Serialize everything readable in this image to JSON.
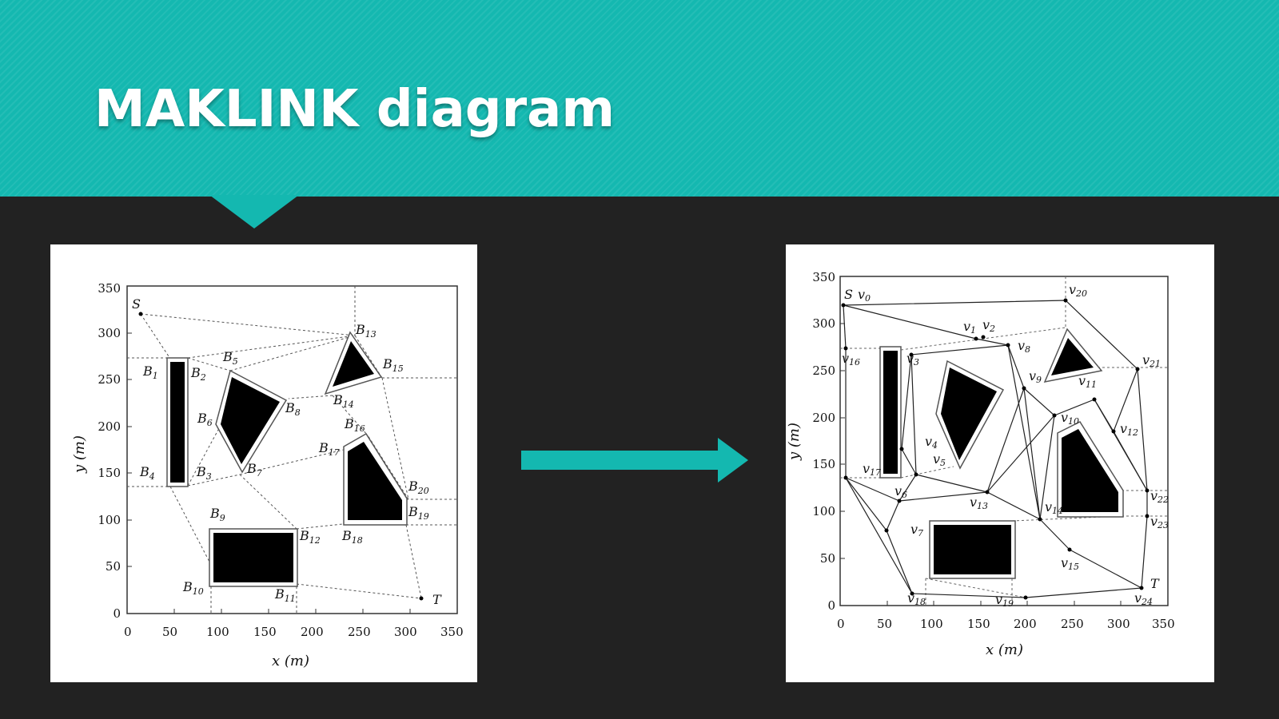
{
  "slide": {
    "title": "MAKLINK diagram",
    "accent_color": "#14b8b0",
    "background_color": "#222222",
    "arrow_color": "#14b8b0"
  },
  "left_diagram": {
    "x_axis_label": "x (m)",
    "y_axis_label": "y (m)",
    "x_ticks": [
      "0",
      "50",
      "100",
      "150",
      "200",
      "250",
      "300",
      "350"
    ],
    "y_ticks": [
      "0",
      "50",
      "100",
      "150",
      "200",
      "250",
      "300",
      "350"
    ],
    "start_label": "S",
    "target_label": "T",
    "obstacle_vertices": [
      {
        "base": "B",
        "sub": "1"
      },
      {
        "base": "B",
        "sub": "2"
      },
      {
        "base": "B",
        "sub": "3"
      },
      {
        "base": "B",
        "sub": "4"
      },
      {
        "base": "B",
        "sub": "5"
      },
      {
        "base": "B",
        "sub": "6"
      },
      {
        "base": "B",
        "sub": "7"
      },
      {
        "base": "B",
        "sub": "8"
      },
      {
        "base": "B",
        "sub": "9"
      },
      {
        "base": "B",
        "sub": "10"
      },
      {
        "base": "B",
        "sub": "11"
      },
      {
        "base": "B",
        "sub": "12"
      },
      {
        "base": "B",
        "sub": "13"
      },
      {
        "base": "B",
        "sub": "14"
      },
      {
        "base": "B",
        "sub": "15"
      },
      {
        "base": "B",
        "sub": "16"
      },
      {
        "base": "B",
        "sub": "17"
      },
      {
        "base": "B",
        "sub": "18"
      },
      {
        "base": "B",
        "sub": "19"
      },
      {
        "base": "B",
        "sub": "20"
      }
    ]
  },
  "right_diagram": {
    "x_axis_label": "x (m)",
    "y_axis_label": "y (m)",
    "x_ticks": [
      "0",
      "50",
      "100",
      "150",
      "200",
      "250",
      "300",
      "350"
    ],
    "y_ticks": [
      "0",
      "50",
      "100",
      "150",
      "200",
      "250",
      "300",
      "350"
    ],
    "start_label": "S",
    "target_label": "T",
    "graph_nodes": [
      {
        "base": "v",
        "sub": "0"
      },
      {
        "base": "v",
        "sub": "1"
      },
      {
        "base": "v",
        "sub": "2"
      },
      {
        "base": "v",
        "sub": "3"
      },
      {
        "base": "v",
        "sub": "4"
      },
      {
        "base": "v",
        "sub": "5"
      },
      {
        "base": "v",
        "sub": "6"
      },
      {
        "base": "v",
        "sub": "7"
      },
      {
        "base": "v",
        "sub": "8"
      },
      {
        "base": "v",
        "sub": "9"
      },
      {
        "base": "v",
        "sub": "10"
      },
      {
        "base": "v",
        "sub": "11"
      },
      {
        "base": "v",
        "sub": "12"
      },
      {
        "base": "v",
        "sub": "13"
      },
      {
        "base": "v",
        "sub": "14"
      },
      {
        "base": "v",
        "sub": "15"
      },
      {
        "base": "v",
        "sub": "16"
      },
      {
        "base": "v",
        "sub": "17"
      },
      {
        "base": "v",
        "sub": "18"
      },
      {
        "base": "v",
        "sub": "19"
      },
      {
        "base": "v",
        "sub": "20"
      },
      {
        "base": "v",
        "sub": "21"
      },
      {
        "base": "v",
        "sub": "22"
      },
      {
        "base": "v",
        "sub": "23"
      },
      {
        "base": "v",
        "sub": "24"
      }
    ]
  }
}
